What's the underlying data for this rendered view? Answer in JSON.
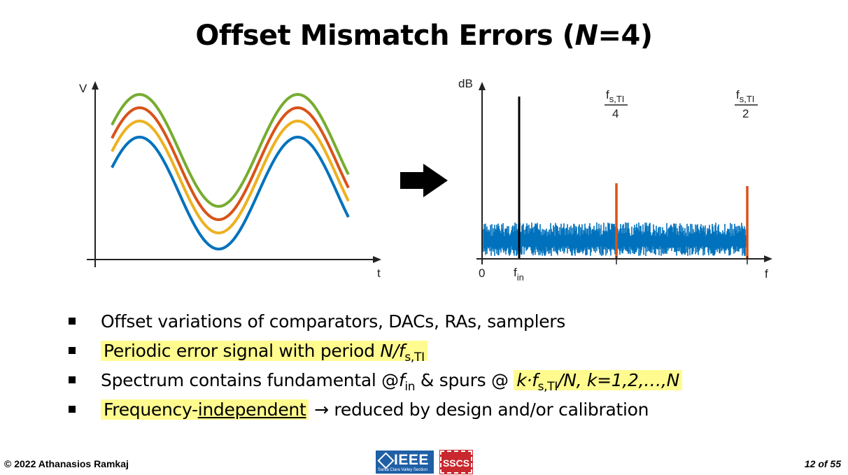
{
  "slide": {
    "title_prefix": "Offset Mismatch Errors (",
    "title_italic": "N",
    "title_suffix": "=4)"
  },
  "time_plot": {
    "ylabel": "V",
    "xlabel": "t",
    "colors": [
      "#0072bd",
      "#edb120",
      "#d95319",
      "#77ac30"
    ]
  },
  "spectrum_plot": {
    "ylabel": "dB",
    "xlabel": "f",
    "zero_label": "0",
    "fin_label": "f",
    "fin_sub": "in",
    "q_num": "f",
    "q_num_sub": "s,TI",
    "q_den": "4",
    "h_num": "f",
    "h_num_sub": "s,TI",
    "h_den": "2",
    "noise_color": "#0072bd",
    "spur_color": "#d95319",
    "fundamental_color": "#000000"
  },
  "bullets": {
    "b1": "Offset variations of comparators, DACs, RAs, samplers",
    "b2_text": "Periodic error signal with period ",
    "b2_math": "N/f",
    "b2_sub": "s,TI",
    "b3_text": "Spectrum contains fundamental @",
    "b3_f": "f",
    "b3_fsub": "in",
    "b3_mid": " & spurs @ ",
    "b3_math1": "k·f",
    "b3_msub": "s,TI",
    "b3_math2": "/N, k=1,2,…,N",
    "b4_a": "Frequency-",
    "b4_ul": "independent",
    "b4_arrow": "→",
    "b4_rest": " reduced by design and/or calibration"
  },
  "footer": {
    "copyright": "© 2022 Athanasios Ramkaj",
    "page": "12 of 55",
    "ieee_word": "IEEE",
    "ieee_small": "Santa Clara Valley Section",
    "sscs_word": "SSCS"
  }
}
